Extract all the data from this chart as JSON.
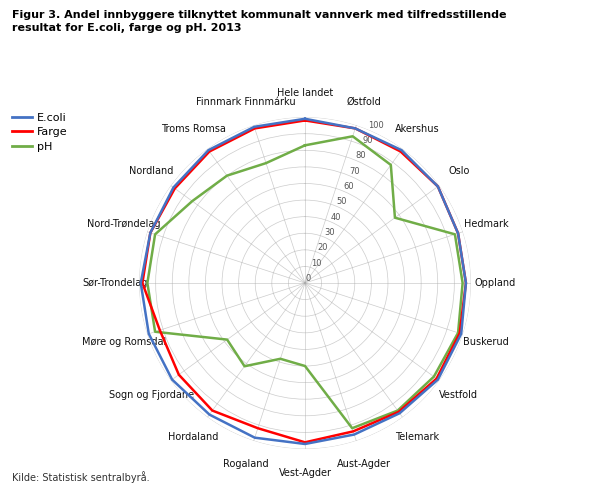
{
  "title": "Figur 3. Andel innbyggere tilknyttet kommunalt vannverk med tilfredsstillende\nresultat for E.coli, farge og pH. 2013",
  "source": "Kilde: Statistisk sentralbyrå.",
  "categories": [
    "Hele landet",
    "Østfold",
    "Akershus",
    "Oslo",
    "Hedmark",
    "Oppland",
    "Buskerud",
    "Vestfold",
    "Telemark",
    "Aust-Agder",
    "Vest-Agder",
    "Rogaland",
    "Hordaland",
    "Sogn og Fjordane",
    "Møre og Romsdal",
    "Sør-Trondelag",
    "Nord-Trøndelag",
    "Nordland",
    "Troms Romsa",
    "Finnmark Finnmárku"
  ],
  "ecoli": [
    99,
    98,
    99,
    99,
    97,
    97,
    99,
    99,
    97,
    96,
    97,
    98,
    98,
    99,
    99,
    99,
    98,
    98,
    99,
    99
  ],
  "farge": [
    98,
    98,
    98,
    99,
    97,
    97,
    98,
    98,
    96,
    94,
    96,
    92,
    95,
    94,
    92,
    98,
    98,
    97,
    98,
    98
  ],
  "ph": [
    83,
    93,
    88,
    67,
    95,
    95,
    97,
    96,
    95,
    92,
    50,
    48,
    62,
    58,
    95,
    95,
    95,
    84,
    80,
    76
  ],
  "ecoli_color": "#4472C4",
  "farge_color": "#FF0000",
  "ph_color": "#70AD47",
  "grid_color": "#AAAAAA",
  "bg_color": "#FFFFFF",
  "r_max": 100,
  "r_ticks": [
    0,
    10,
    20,
    30,
    40,
    50,
    60,
    70,
    80,
    90,
    100
  ]
}
